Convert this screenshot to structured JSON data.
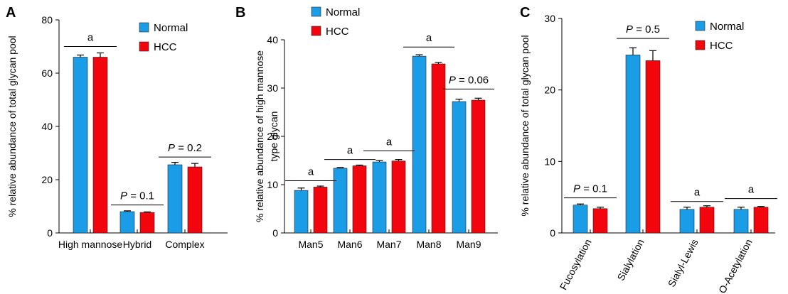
{
  "colors": {
    "normal": "#1a9de6",
    "hcc": "#f2050c",
    "err": "#000000"
  },
  "chart_data": [
    {
      "type": "bar",
      "panel_label": "A",
      "ylabel": "% relative abundance of total glycan pool",
      "ylim": [
        0,
        80
      ],
      "yticks": [
        0,
        20,
        40,
        60,
        80
      ],
      "categories": [
        "High mannose",
        "Hybrid",
        "Complex"
      ],
      "series": [
        {
          "name": "Normal",
          "values": [
            66,
            8,
            25.6
          ],
          "errors": [
            0.8,
            0.3,
            0.9
          ]
        },
        {
          "name": "HCC",
          "values": [
            66,
            7.7,
            24.8
          ],
          "errors": [
            1.6,
            0.2,
            1.3
          ]
        }
      ],
      "annotations": [
        {
          "category": "High mannose",
          "italic_p": false,
          "text": "a",
          "y": 70
        },
        {
          "category": "Hybrid",
          "italic_p": true,
          "text": " = 0.1",
          "y": 10.5
        },
        {
          "category": "Complex",
          "italic_p": true,
          "text": " = 0.2",
          "y": 28.5
        }
      ],
      "legend": "top-right",
      "grid": false
    },
    {
      "type": "bar",
      "panel_label": "B",
      "ylabel": [
        "% relative abundance of high mannose",
        "type glycan"
      ],
      "ylim": [
        0,
        40
      ],
      "yticks": [
        0,
        10,
        20,
        30,
        40
      ],
      "categories": [
        "Man5",
        "Man6",
        "Man7",
        "Man8",
        "Man9"
      ],
      "series": [
        {
          "name": "Normal",
          "values": [
            8.8,
            13.4,
            14.7,
            36.6,
            27.2
          ],
          "errors": [
            0.5,
            0.15,
            0.3,
            0.3,
            0.5
          ]
        },
        {
          "name": "HCC",
          "values": [
            9.5,
            13.9,
            14.9,
            35.0,
            27.5
          ],
          "errors": [
            0.2,
            0.15,
            0.3,
            0.3,
            0.4
          ]
        }
      ],
      "annotations": [
        {
          "category": "Man5",
          "italic_p": false,
          "text": "a",
          "y": 10.8
        },
        {
          "category": "Man6",
          "italic_p": false,
          "text": "a",
          "y": 15.2
        },
        {
          "category": "Man7",
          "italic_p": false,
          "text": "a",
          "y": 17
        },
        {
          "category": "Man8",
          "italic_p": false,
          "text": "a",
          "y": 38.5
        },
        {
          "category": "Man9",
          "italic_p": true,
          "text": " = 0.06",
          "y": 29.8
        }
      ],
      "legend": "top-left",
      "grid": false
    },
    {
      "type": "bar",
      "panel_label": "C",
      "ylabel": "% relative abundance of total glycan pool",
      "ylim": [
        0,
        30
      ],
      "yticks": [
        0,
        10,
        20,
        30
      ],
      "categories": [
        "Fucosylation",
        "Sialylation",
        "Sialyl-Lewis",
        "O-Acetylation"
      ],
      "series": [
        {
          "name": "Normal",
          "values": [
            3.9,
            24.9,
            3.3,
            3.3
          ],
          "errors": [
            0.15,
            1.0,
            0.3,
            0.3
          ]
        },
        {
          "name": "HCC",
          "values": [
            3.4,
            24.1,
            3.6,
            3.6
          ],
          "errors": [
            0.2,
            1.4,
            0.2,
            0.1
          ]
        }
      ],
      "annotations": [
        {
          "category": "Fucosylation",
          "italic_p": true,
          "text": " = 0.1",
          "y": 4.9
        },
        {
          "category": "Sialylation",
          "italic_p": true,
          "text": " = 0.5",
          "y": 27.2
        },
        {
          "category": "Sialyl-Lewis",
          "italic_p": false,
          "text": "a",
          "y": 4.4
        },
        {
          "category": "O-Acetylation",
          "italic_p": false,
          "text": "a",
          "y": 4.8
        }
      ],
      "legend": "top-right",
      "grid": false
    }
  ]
}
